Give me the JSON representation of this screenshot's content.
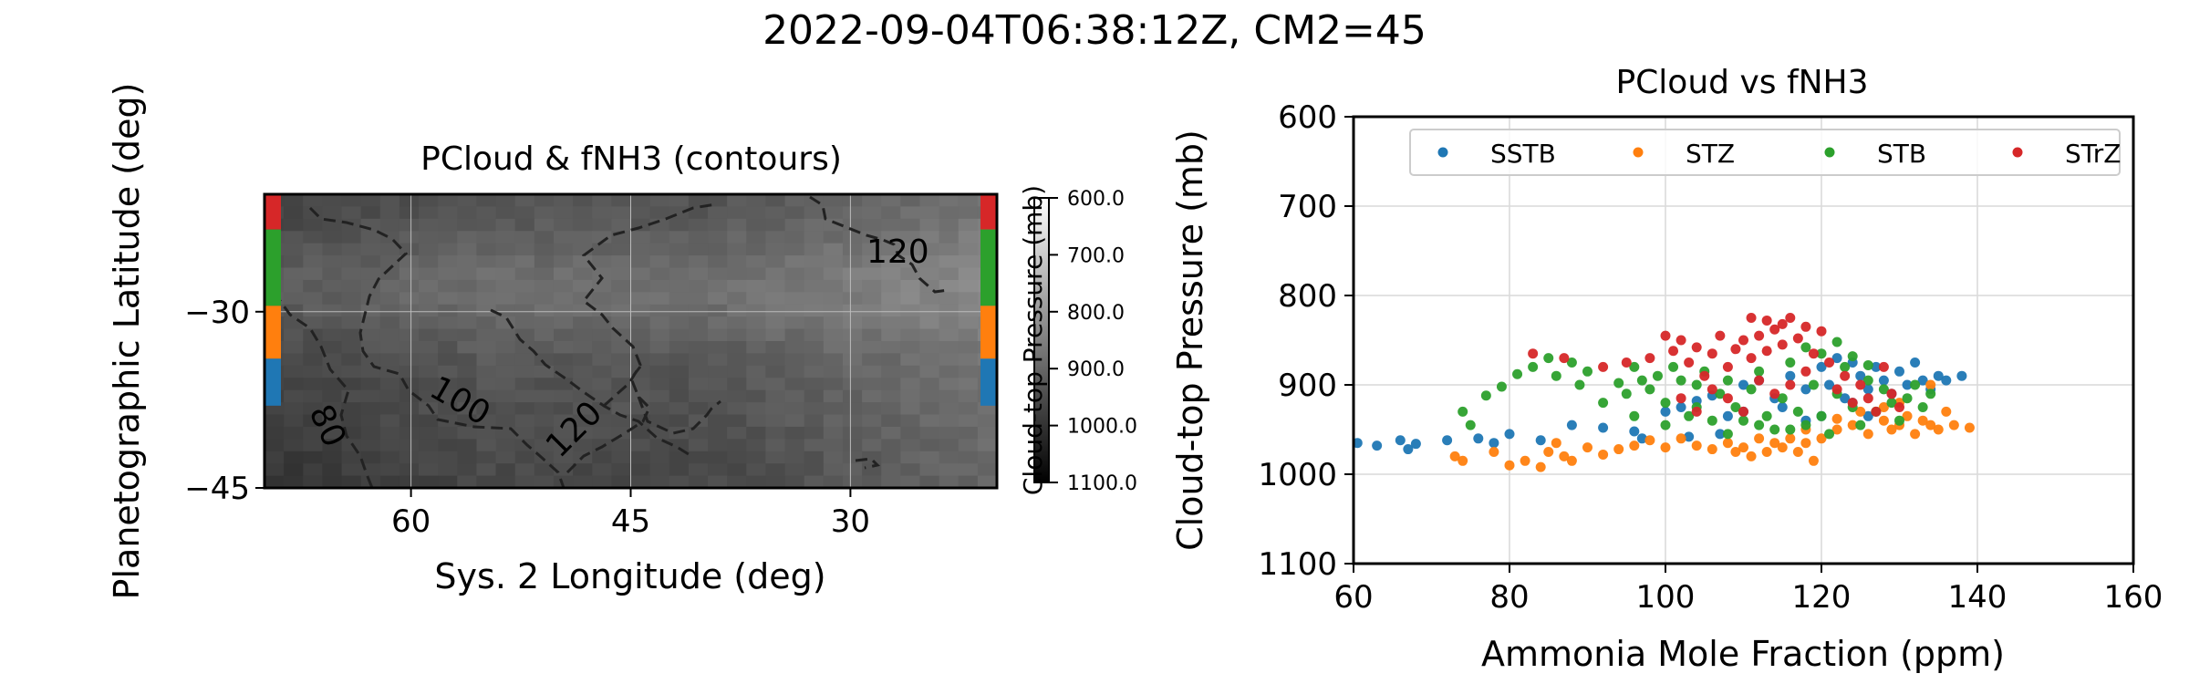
{
  "suptitle": "2022-09-04T06:38:12Z, CM2=45",
  "colors": {
    "SSTB": "#1f77b4",
    "STZ": "#ff7f0e",
    "STB": "#2ca02c",
    "STrZ": "#d62728",
    "grid": "#d9d9d9",
    "contour": "#222222"
  },
  "chart_data": [
    {
      "type": "heatmap",
      "title": "PCloud & fNH3 (contours)",
      "xlabel": "Sys. 2 Longitude (deg)",
      "ylabel": "Planetographic Latitude (deg)",
      "xlim": [
        70,
        20
      ],
      "ylim": [
        -45,
        -20
      ],
      "xticks": [
        60,
        45,
        30
      ],
      "yticks": [
        -30,
        -45
      ],
      "ytick_labels": [
        "−30",
        "−45"
      ],
      "colorbar": {
        "label": "Cloud-top Pressure (mb)",
        "range": [
          600,
          1100
        ],
        "ticks": [
          "600.0",
          "700.0",
          "800.0",
          "900.0",
          "1000.0",
          "1100.0"
        ]
      },
      "contour_labels": [
        "80",
        "100",
        "120",
        "120"
      ],
      "band_markers": [
        {
          "band": "STrZ",
          "lat": [
            -20,
            -23
          ]
        },
        {
          "band": "STB",
          "lat": [
            -23,
            -29.5
          ]
        },
        {
          "band": "STZ",
          "lat": [
            -29.5,
            -34
          ]
        },
        {
          "band": "SSTB",
          "lat": [
            -34,
            -38
          ]
        }
      ]
    },
    {
      "type": "scatter",
      "title": "PCloud vs fNH3",
      "xlabel": "Ammonia Mole Fraction (ppm)",
      "ylabel": "Cloud-top Pressure (mb)",
      "xlim": [
        60,
        160
      ],
      "ylim": [
        1100,
        600
      ],
      "xticks": [
        60,
        80,
        100,
        120,
        140,
        160
      ],
      "yticks": [
        600,
        700,
        800,
        900,
        1000,
        1100
      ],
      "legend": [
        "SSTB",
        "STZ",
        "STB",
        "STrZ"
      ],
      "series": [
        {
          "name": "SSTB",
          "points": [
            [
              60.5,
              965
            ],
            [
              63,
              968
            ],
            [
              66,
              962
            ],
            [
              67,
              972
            ],
            [
              68,
              966
            ],
            [
              72,
              962
            ],
            [
              76,
              960
            ],
            [
              78,
              965
            ],
            [
              80,
              955
            ],
            [
              84,
              962
            ],
            [
              88,
              945
            ],
            [
              92,
              948
            ],
            [
              96,
              952
            ],
            [
              100,
              930
            ],
            [
              102,
              925
            ],
            [
              104,
              918
            ],
            [
              106,
              912
            ],
            [
              108,
              935
            ],
            [
              110,
              900
            ],
            [
              112,
              895
            ],
            [
              114,
              915
            ],
            [
              116,
              890
            ],
            [
              118,
              905
            ],
            [
              120,
              880
            ],
            [
              121,
              900
            ],
            [
              122,
              870
            ],
            [
              123,
              915
            ],
            [
              124,
              875
            ],
            [
              125,
              890
            ],
            [
              126,
              905
            ],
            [
              127,
              880
            ],
            [
              128,
              895
            ],
            [
              129,
              910
            ],
            [
              130,
              885
            ],
            [
              131,
              900
            ],
            [
              132,
              875
            ],
            [
              133,
              895
            ],
            [
              134,
              905
            ],
            [
              135,
              890
            ],
            [
              136,
              895
            ],
            [
              138,
              890
            ],
            [
              110,
              930
            ],
            [
              115,
              925
            ],
            [
              118,
              940
            ],
            [
              120,
              935
            ],
            [
              124,
              920
            ],
            [
              126,
              935
            ],
            [
              97,
              960
            ],
            [
              103,
              958
            ],
            [
              107,
              955
            ]
          ]
        },
        {
          "name": "STZ",
          "points": [
            [
              73,
              980
            ],
            [
              74,
              985
            ],
            [
              78,
              975
            ],
            [
              80,
              990
            ],
            [
              82,
              985
            ],
            [
              84,
              992
            ],
            [
              85,
              975
            ],
            [
              86,
              965
            ],
            [
              87,
              980
            ],
            [
              88,
              985
            ],
            [
              90,
              970
            ],
            [
              92,
              978
            ],
            [
              94,
              972
            ],
            [
              96,
              968
            ],
            [
              98,
              962
            ],
            [
              100,
              970
            ],
            [
              102,
              960
            ],
            [
              104,
              968
            ],
            [
              106,
              972
            ],
            [
              108,
              965
            ],
            [
              109,
              975
            ],
            [
              110,
              970
            ],
            [
              111,
              980
            ],
            [
              112,
              960
            ],
            [
              113,
              975
            ],
            [
              114,
              965
            ],
            [
              115,
              970
            ],
            [
              116,
              960
            ],
            [
              117,
              975
            ],
            [
              118,
              965
            ],
            [
              119,
              985
            ],
            [
              120,
              960
            ],
            [
              122,
              950
            ],
            [
              124,
              945
            ],
            [
              126,
              955
            ],
            [
              128,
              940
            ],
            [
              129,
              950
            ],
            [
              130,
              945
            ],
            [
              131,
              935
            ],
            [
              132,
              955
            ],
            [
              133,
              940
            ],
            [
              134,
              945
            ],
            [
              135,
              950
            ],
            [
              136,
              930
            ],
            [
              137,
              945
            ],
            [
              139,
              948
            ],
            [
              130,
              920
            ],
            [
              134,
              900
            ],
            [
              122,
              938
            ],
            [
              118,
              950
            ],
            [
              125,
              930
            ],
            [
              128,
              925
            ]
          ]
        },
        {
          "name": "STB",
          "points": [
            [
              74,
              930
            ],
            [
              75,
              945
            ],
            [
              77,
              912
            ],
            [
              79,
              902
            ],
            [
              81,
              888
            ],
            [
              83,
              880
            ],
            [
              85,
              870
            ],
            [
              86,
              890
            ],
            [
              88,
              875
            ],
            [
              89,
              900
            ],
            [
              90,
              885
            ],
            [
              92,
              920
            ],
            [
              94,
              898
            ],
            [
              95,
              910
            ],
            [
              96,
              880
            ],
            [
              97,
              895
            ],
            [
              98,
              905
            ],
            [
              99,
              890
            ],
            [
              100,
              920
            ],
            [
              101,
              880
            ],
            [
              102,
              895
            ],
            [
              103,
              935
            ],
            [
              104,
              900
            ],
            [
              105,
              885
            ],
            [
              106,
              940
            ],
            [
              107,
              910
            ],
            [
              108,
              895
            ],
            [
              109,
              925
            ],
            [
              110,
              940
            ],
            [
              111,
              905
            ],
            [
              112,
              885
            ],
            [
              113,
              935
            ],
            [
              114,
              950
            ],
            [
              115,
              915
            ],
            [
              116,
              875
            ],
            [
              117,
              930
            ],
            [
              118,
              945
            ],
            [
              119,
              900
            ],
            [
              120,
              865
            ],
            [
              120,
              935
            ],
            [
              121,
              955
            ],
            [
              122,
              910
            ],
            [
              123,
              880
            ],
            [
              124,
              925
            ],
            [
              125,
              945
            ],
            [
              126,
              895
            ],
            [
              127,
              930
            ],
            [
              128,
              905
            ],
            [
              129,
              920
            ],
            [
              130,
              940
            ],
            [
              131,
              915
            ],
            [
              132,
              900
            ],
            [
              133,
              925
            ],
            [
              134,
              910
            ],
            [
              112,
              945
            ],
            [
              116,
              950
            ],
            [
              104,
              925
            ],
            [
              108,
              955
            ],
            [
              96,
              935
            ],
            [
              100,
              945
            ],
            [
              118,
              858
            ],
            [
              122,
              852
            ],
            [
              124,
              868
            ],
            [
              126,
              878
            ]
          ]
        },
        {
          "name": "STrZ",
          "points": [
            [
              100,
              845
            ],
            [
              101,
              862
            ],
            [
              102,
              850
            ],
            [
              103,
              875
            ],
            [
              104,
              858
            ],
            [
              105,
              890
            ],
            [
              106,
              865
            ],
            [
              107,
              845
            ],
            [
              108,
              880
            ],
            [
              109,
              860
            ],
            [
              110,
              850
            ],
            [
              111,
              870
            ],
            [
              112,
              845
            ],
            [
              113,
              862
            ],
            [
              114,
              838
            ],
            [
              115,
              855
            ],
            [
              116,
              825
            ],
            [
              117,
              848
            ],
            [
              118,
              835
            ],
            [
              119,
              865
            ],
            [
              120,
              840
            ],
            [
              121,
              875
            ],
            [
              122,
              905
            ],
            [
              123,
              890
            ],
            [
              124,
              920
            ],
            [
              125,
              900
            ],
            [
              126,
              915
            ],
            [
              127,
              930
            ],
            [
              128,
              880
            ],
            [
              129,
              910
            ],
            [
              130,
              925
            ],
            [
              106,
              905
            ],
            [
              108,
              915
            ],
            [
              110,
              930
            ],
            [
              112,
              895
            ],
            [
              114,
              910
            ],
            [
              104,
              930
            ],
            [
              116,
              900
            ],
            [
              118,
              885
            ],
            [
              102,
              915
            ],
            [
              98,
              870
            ],
            [
              95,
              875
            ],
            [
              92,
              880
            ],
            [
              87,
              870
            ],
            [
              83,
              865
            ],
            [
              111,
              825
            ],
            [
              113,
              828
            ],
            [
              115,
              832
            ]
          ]
        }
      ]
    }
  ]
}
